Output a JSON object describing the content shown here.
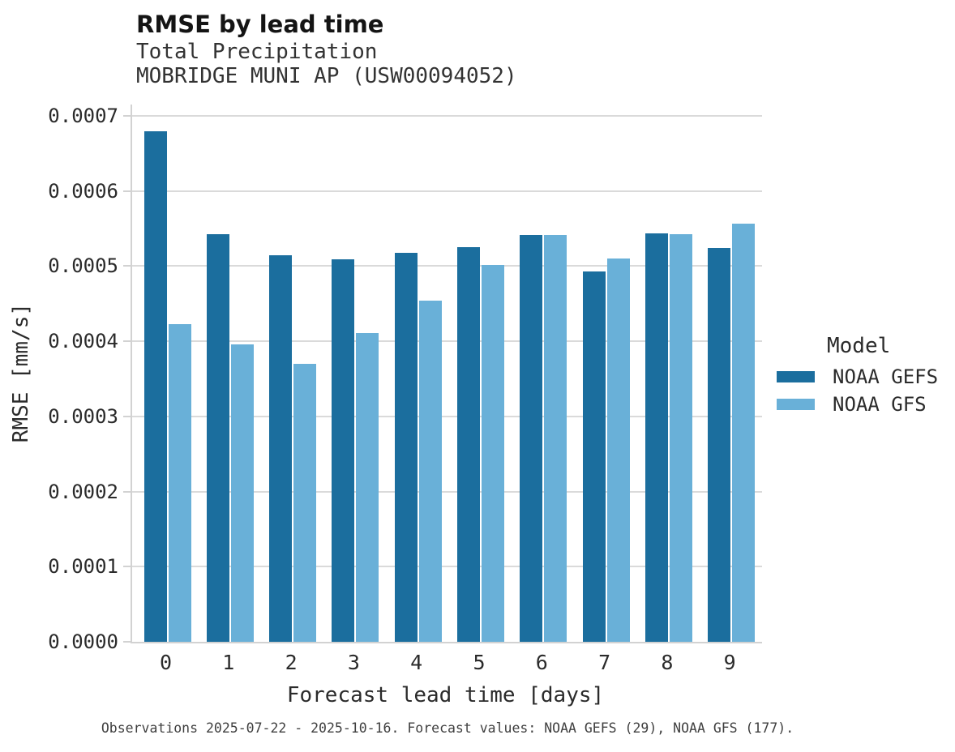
{
  "header": {
    "title": "RMSE by lead time",
    "subtitle1": "Total Precipitation",
    "subtitle2": "MOBRIDGE MUNI AP (USW00094052)"
  },
  "caption": "Observations 2025-07-22 - 2025-10-16. Forecast values: NOAA GEFS (29), NOAA GFS (177).",
  "colors": {
    "noaa_gefs": "#1b6e9e",
    "noaa_gfs": "#69b0d8",
    "gridline": "#dadada",
    "axis": "#d2d2d2"
  },
  "chart_data": {
    "type": "bar",
    "title": "RMSE by lead time",
    "subtitle": "Total Precipitation",
    "station": "MOBRIDGE MUNI AP (USW00094052)",
    "xlabel": "Forecast lead time [days]",
    "ylabel": "RMSE [mm/s]",
    "categories": [
      "0",
      "1",
      "2",
      "3",
      "4",
      "5",
      "6",
      "7",
      "8",
      "9"
    ],
    "series": [
      {
        "name": "NOAA GEFS",
        "color": "#1b6e9e",
        "values": [
          0.00068,
          0.000542,
          0.000514,
          0.000509,
          0.000518,
          0.000525,
          0.000541,
          0.000493,
          0.000544,
          0.000524
        ]
      },
      {
        "name": "NOAA GFS",
        "color": "#69b0d8",
        "values": [
          0.000423,
          0.000396,
          0.00037,
          0.000411,
          0.000454,
          0.000502,
          0.000541,
          0.00051,
          0.000542,
          0.000557
        ]
      }
    ],
    "ylim": [
      0,
      0.000715
    ],
    "yticks": [
      0.0,
      0.0001,
      0.0002,
      0.0003,
      0.0004,
      0.0005,
      0.0006,
      0.0007
    ],
    "ytick_labels": [
      "0.0000",
      "0.0001",
      "0.0002",
      "0.0003",
      "0.0004",
      "0.0005",
      "0.0006",
      "0.0007"
    ],
    "grid": true,
    "legend_title": "Model",
    "legend_position": "right"
  }
}
